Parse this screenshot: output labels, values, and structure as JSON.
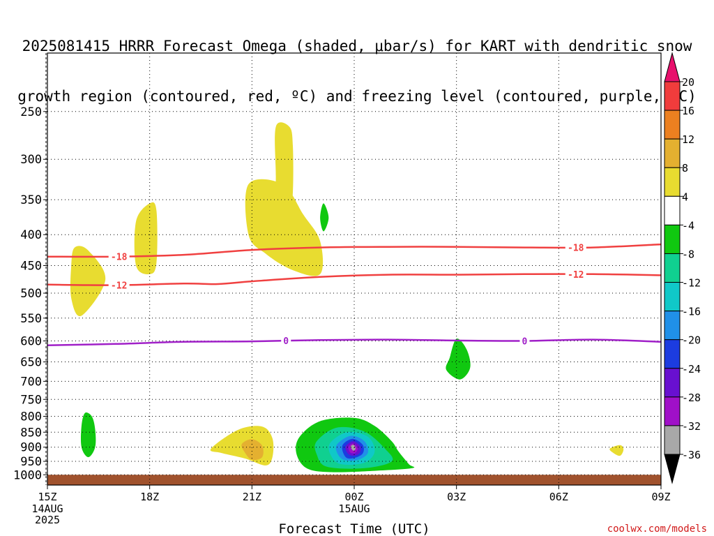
{
  "title_lines": [
    "2025081415 HRRR Forecast Omega (shaded, μbar/s) for KART with dendritic snow",
    "growth region (contoured, red, ºC) and freezing level (contoured, purple, ºC)"
  ],
  "credit": "coolwx.com/models",
  "chart_data": {
    "type": "heatmap",
    "xlabel": "Forecast Time (UTC)",
    "ylabel": "",
    "x_ticks": [
      "15Z",
      "18Z",
      "21Z",
      "00Z",
      "03Z",
      "06Z",
      "09Z"
    ],
    "x_tick_sublabels": [
      [
        "14AUG",
        "2025"
      ],
      [],
      [],
      [
        "15AUG"
      ],
      [],
      [],
      []
    ],
    "x_range_hours": [
      0,
      18
    ],
    "y_ticks": [
      250,
      300,
      350,
      400,
      450,
      500,
      550,
      600,
      650,
      700,
      750,
      800,
      850,
      900,
      950,
      1000
    ],
    "y_range_hpa": [
      200,
      1040
    ],
    "y_scale": "log (inverted)",
    "grid": true,
    "colorbar": {
      "labels": [
        "20",
        "16",
        "12",
        "8",
        "4",
        "-4",
        "-8",
        "-12",
        "-16",
        "-20",
        "-24",
        "-28",
        "-32",
        "-36"
      ],
      "colors": [
        "#e8106c",
        "#f03c3c",
        "#ec8020",
        "#e4b030",
        "#e8dc30",
        "#ffffff",
        "#10c810",
        "#10d090",
        "#10c8c8",
        "#2090e8",
        "#1c3ce0",
        "#6810d0",
        "#a010c8",
        "#a8a8a8",
        "#000000"
      ]
    },
    "contours": [
      {
        "label": "-18",
        "color": "#f04040",
        "label_at_hours": [
          2.1,
          15.5
        ],
        "points": [
          [
            0,
            435
          ],
          [
            2,
            435
          ],
          [
            4,
            432
          ],
          [
            6,
            424
          ],
          [
            8,
            420
          ],
          [
            10,
            419
          ],
          [
            12,
            419
          ],
          [
            14,
            420
          ],
          [
            16,
            420
          ],
          [
            18,
            415
          ]
        ]
      },
      {
        "label": "-12",
        "color": "#f04040",
        "label_at_hours": [
          2.1,
          15.5
        ],
        "points": [
          [
            0,
            484
          ],
          [
            2,
            485
          ],
          [
            4,
            482
          ],
          [
            5,
            483
          ],
          [
            6,
            478
          ],
          [
            8,
            470
          ],
          [
            10,
            466
          ],
          [
            12,
            466
          ],
          [
            14,
            465
          ],
          [
            16,
            465
          ],
          [
            18,
            467
          ]
        ]
      },
      {
        "label": "0",
        "color": "#a020c8",
        "label_at_hours": [
          7.0,
          14.0
        ],
        "points": [
          [
            0,
            610
          ],
          [
            2,
            607
          ],
          [
            4,
            602
          ],
          [
            6,
            601
          ],
          [
            8,
            598
          ],
          [
            10,
            597
          ],
          [
            12,
            599
          ],
          [
            14,
            600
          ],
          [
            16,
            597
          ],
          [
            18,
            602
          ]
        ]
      }
    ],
    "shaded_regions": [
      {
        "value": 4,
        "color": "#e8dc30",
        "points": [
          [
            0.8,
            420
          ],
          [
            1.2,
            425
          ],
          [
            1.7,
            475
          ],
          [
            1.0,
            545
          ],
          [
            0.7,
            510
          ],
          [
            0.7,
            450
          ]
        ]
      },
      {
        "value": 4,
        "color": "#e8dc30",
        "points": [
          [
            2.6,
            380
          ],
          [
            3.0,
            355
          ],
          [
            3.2,
            365
          ],
          [
            3.2,
            445
          ],
          [
            3.0,
            465
          ],
          [
            2.6,
            450
          ]
        ]
      },
      {
        "value": 4,
        "color": "#e8dc30",
        "points": [
          [
            5.9,
            330
          ],
          [
            6.9,
            330
          ],
          [
            7.5,
            370
          ],
          [
            8.0,
            410
          ],
          [
            8.0,
            465
          ],
          [
            7.2,
            458
          ],
          [
            6.4,
            430
          ],
          [
            5.9,
            400
          ]
        ]
      },
      {
        "value": 4,
        "color": "#e8dc30",
        "points": [
          [
            6.7,
            265
          ],
          [
            7.1,
            265
          ],
          [
            7.2,
            285
          ],
          [
            7.2,
            340
          ],
          [
            7.1,
            375
          ],
          [
            6.9,
            395
          ],
          [
            6.7,
            375
          ],
          [
            6.7,
            320
          ]
        ]
      },
      {
        "value": 4,
        "color": "#e8dc30",
        "points": [
          [
            4.8,
            905
          ],
          [
            5.6,
            842
          ],
          [
            6.3,
            832
          ],
          [
            6.6,
            870
          ],
          [
            6.6,
            935
          ],
          [
            6.4,
            965
          ],
          [
            5.8,
            940
          ],
          [
            5.1,
            920
          ]
        ]
      },
      {
        "value": 8,
        "color": "#e4b030",
        "points": [
          [
            5.7,
            890
          ],
          [
            6.0,
            873
          ],
          [
            6.3,
            895
          ],
          [
            6.3,
            935
          ],
          [
            6.0,
            945
          ],
          [
            5.8,
            920
          ]
        ]
      },
      {
        "value": 4,
        "color": "#e8dc30",
        "points": [
          [
            16.5,
            905
          ],
          [
            16.8,
            893
          ],
          [
            16.9,
            908
          ],
          [
            16.8,
            930
          ],
          [
            16.6,
            920
          ]
        ]
      },
      {
        "value": -4,
        "color": "#10c810",
        "points": [
          [
            1.1,
            790
          ],
          [
            1.3,
            800
          ],
          [
            1.4,
            840
          ],
          [
            1.4,
            900
          ],
          [
            1.2,
            935
          ],
          [
            1.0,
            900
          ],
          [
            1.0,
            830
          ]
        ]
      },
      {
        "value": -4,
        "color": "#10c810",
        "points": [
          [
            8.1,
            355
          ],
          [
            8.25,
            375
          ],
          [
            8.1,
            395
          ],
          [
            8.0,
            375
          ]
        ]
      },
      {
        "value": -4,
        "color": "#10c810",
        "points": [
          [
            11.8,
            640
          ],
          [
            12.0,
            595
          ],
          [
            12.3,
            620
          ],
          [
            12.4,
            665
          ],
          [
            12.1,
            695
          ],
          [
            11.7,
            670
          ]
        ]
      },
      {
        "value": -4,
        "color": "#10c810",
        "points": [
          [
            7.4,
            865
          ],
          [
            8.0,
            815
          ],
          [
            9.0,
            805
          ],
          [
            9.6,
            830
          ],
          [
            10.1,
            880
          ],
          [
            10.3,
            915
          ],
          [
            10.6,
            960
          ],
          [
            10.7,
            975
          ],
          [
            9.6,
            985
          ],
          [
            8.3,
            990
          ],
          [
            7.6,
            975
          ],
          [
            7.3,
            920
          ]
        ]
      },
      {
        "value": -8,
        "color": "#10d090",
        "points": [
          [
            7.9,
            880
          ],
          [
            8.5,
            835
          ],
          [
            9.3,
            848
          ],
          [
            9.9,
            905
          ],
          [
            10.1,
            950
          ],
          [
            9.3,
            975
          ],
          [
            8.2,
            970
          ],
          [
            7.9,
            925
          ]
        ]
      },
      {
        "value": -12,
        "color": "#10c8c8",
        "points": [
          [
            8.3,
            885
          ],
          [
            8.8,
            850
          ],
          [
            9.4,
            865
          ],
          [
            9.6,
            915
          ],
          [
            9.3,
            955
          ],
          [
            8.6,
            960
          ],
          [
            8.3,
            925
          ]
        ]
      },
      {
        "value": -16,
        "color": "#2090e8",
        "points": [
          [
            8.5,
            890
          ],
          [
            8.9,
            862
          ],
          [
            9.3,
            880
          ],
          [
            9.4,
            920
          ],
          [
            9.1,
            945
          ],
          [
            8.7,
            945
          ],
          [
            8.5,
            920
          ]
        ]
      },
      {
        "value": -20,
        "color": "#1c3ce0",
        "points": [
          [
            8.65,
            895
          ],
          [
            8.95,
            872
          ],
          [
            9.25,
            892
          ],
          [
            9.25,
            922
          ],
          [
            9.0,
            938
          ],
          [
            8.75,
            935
          ]
        ]
      },
      {
        "value": -24,
        "color": "#6810d0",
        "points": [
          [
            8.75,
            897
          ],
          [
            8.97,
            880
          ],
          [
            9.18,
            898
          ],
          [
            9.15,
            922
          ],
          [
            8.95,
            930
          ],
          [
            8.8,
            920
          ]
        ]
      },
      {
        "value": -28,
        "color": "#a010c8",
        "points": [
          [
            8.83,
            900
          ],
          [
            8.97,
            887
          ],
          [
            9.1,
            902
          ],
          [
            9.05,
            918
          ],
          [
            8.9,
            920
          ]
        ]
      },
      {
        "value": -32,
        "color": "#a8a8a8",
        "points": [
          [
            8.9,
            898
          ],
          [
            8.98,
            892
          ],
          [
            9.04,
            905
          ],
          [
            8.97,
            912
          ]
        ]
      }
    ],
    "ground": {
      "color": "#a0522d",
      "from_hpa": 1000
    }
  }
}
